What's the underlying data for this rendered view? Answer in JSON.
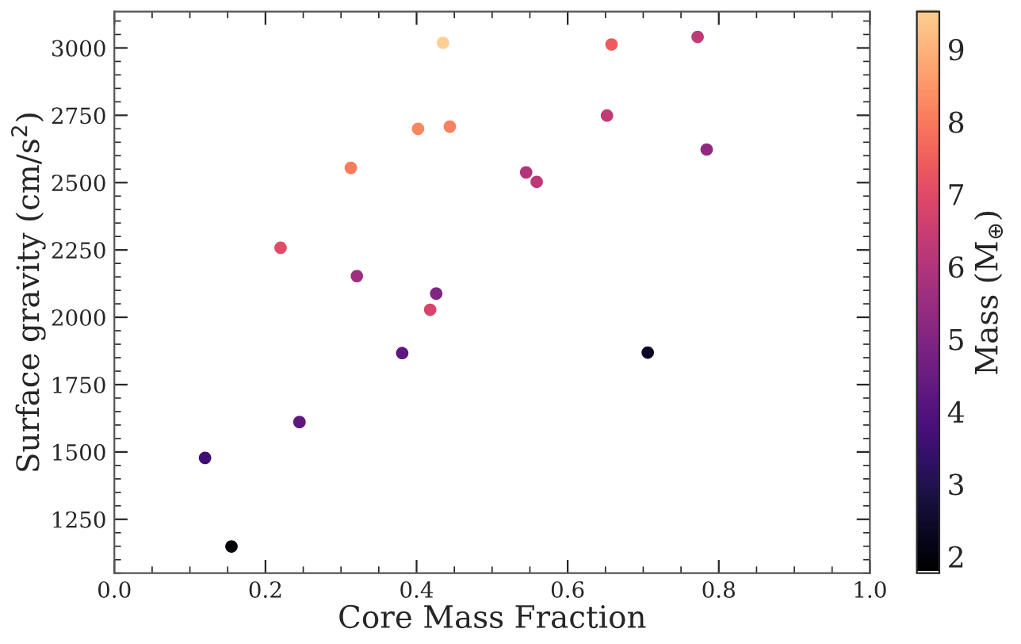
{
  "chart_data": {
    "type": "scatter",
    "xlabel": "Core Mass Fraction",
    "ylabel": "Surface gravity (cm/s$^{2}$)",
    "clabel": "Mass (M$_{⊕}$)",
    "x": [
      0.435,
      0.402,
      0.444,
      0.313,
      0.545,
      0.559,
      0.22,
      0.321,
      0.426,
      0.418,
      0.381,
      0.245,
      0.12,
      0.155,
      0.658,
      0.772,
      0.652,
      0.784,
      0.706
    ],
    "values": [
      3019,
      2700,
      2708,
      2555,
      2538,
      2503,
      2258,
      2153,
      2088,
      2028,
      1867,
      1611,
      1478,
      1149,
      3013,
      3041,
      2749,
      2623,
      1869
    ],
    "cvalues": [
      9.5,
      8.2,
      8.1,
      8.0,
      6.0,
      6.2,
      7.0,
      5.6,
      5.0,
      6.8,
      4.2,
      4.2,
      3.6,
      1.8,
      7.4,
      6.3,
      6.3,
      5.3,
      2.4
    ],
    "clim": [
      1.77,
      9.52
    ],
    "cticks": [
      2,
      3,
      4,
      5,
      6,
      7,
      8,
      9
    ],
    "xlim": [
      0.0,
      1.0
    ],
    "xticks": [
      {
        "value": 0.0,
        "label": "0.0"
      },
      0.2,
      0.4,
      0.6,
      0.8,
      {
        "value": 1.0,
        "label": "1.0"
      }
    ],
    "ylim": [
      1050,
      3135
    ],
    "yticks": [
      1250,
      1500,
      1750,
      2000,
      2250,
      2500,
      2750,
      3000
    ],
    "marker": "circle",
    "grid": false,
    "legend": false
  }
}
